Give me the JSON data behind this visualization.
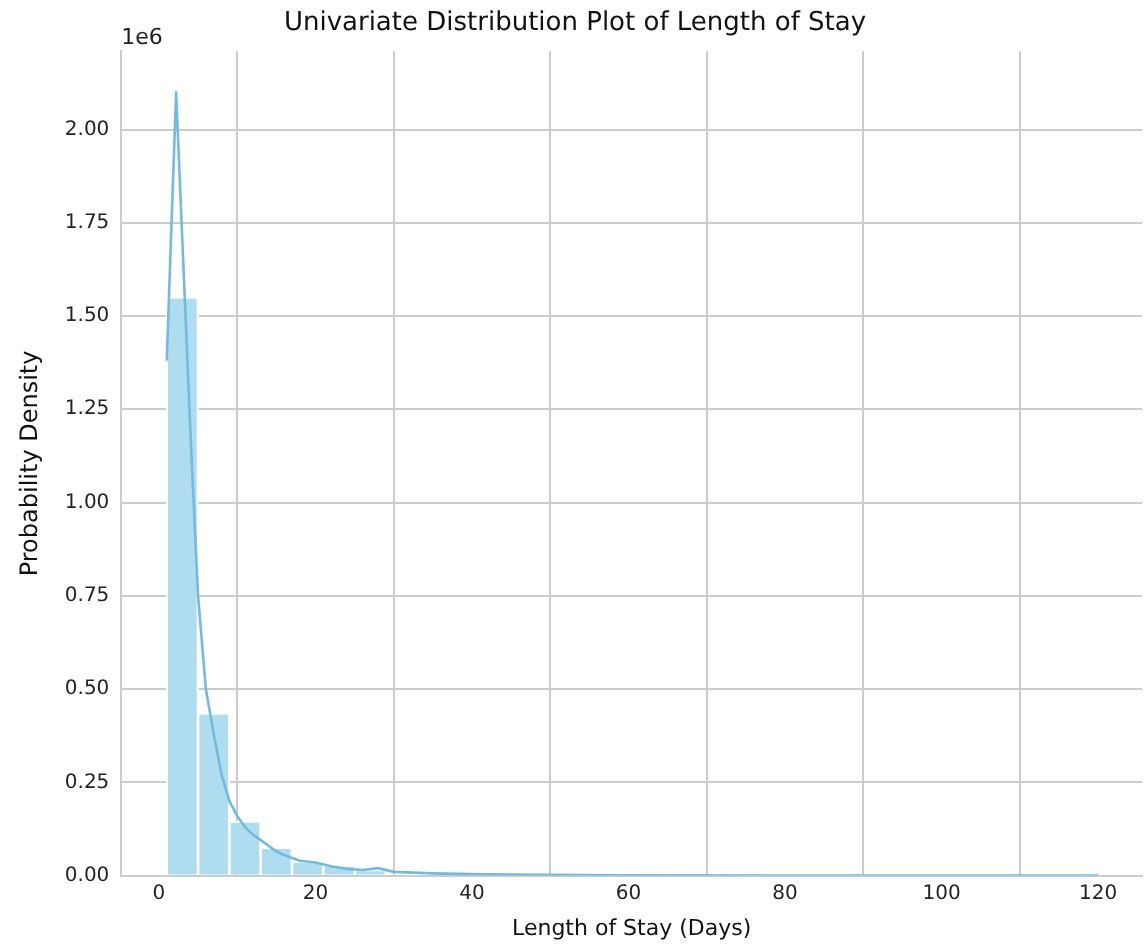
{
  "chart_data": {
    "type": "histogram",
    "title": "Univariate Distribution Plot of Length of Stay",
    "xlabel": "Length of Stay (Days)",
    "ylabel": "Probability Density",
    "annotations": [
      "1e6"
    ],
    "bins": [
      1,
      5,
      9,
      13,
      17,
      21,
      25,
      29,
      33,
      37,
      41,
      45,
      49,
      53,
      57,
      61,
      65,
      69,
      73,
      77,
      81,
      85,
      89,
      93,
      97,
      101,
      105,
      109,
      113,
      117,
      121
    ],
    "values": [
      1.55,
      0.435,
      0.145,
      0.075,
      0.038,
      0.027,
      0.015,
      null,
      null,
      null,
      null,
      null,
      null,
      0,
      0,
      0,
      0,
      0,
      0,
      0,
      0,
      0,
      0,
      0,
      0,
      0,
      0,
      0,
      0,
      0
    ],
    "color": "#b0dcef",
    "series": [
      {
        "type": "line",
        "color": "#74b9de",
        "x": [
          1,
          2.2,
          3,
          4,
          5,
          6,
          7,
          8,
          9,
          10,
          11,
          12,
          13,
          14,
          15,
          16,
          18,
          20,
          22,
          24,
          26,
          28,
          30,
          35,
          40,
          50,
          60,
          80,
          100,
          120
        ],
        "values": [
          1.38,
          2.1,
          1.7,
          1.2,
          0.75,
          0.5,
          0.38,
          0.27,
          0.2,
          0.16,
          0.13,
          0.11,
          0.095,
          0.08,
          0.065,
          0.055,
          0.04,
          0.035,
          0.025,
          0.018,
          0.015,
          0.02,
          0.01,
          0.006,
          0.004,
          0.002,
          0.001,
          0,
          0,
          0
        ]
      }
    ],
    "xlim": [
      -4.8,
      125.6
    ],
    "xticks": [
      0,
      20,
      40,
      60,
      80,
      100,
      120
    ],
    "ylim": [
      0,
      2.21
    ],
    "yticks": [
      {
        "value": 0,
        "label": "0.00"
      },
      {
        "value": 0.25,
        "label": "0.25"
      },
      {
        "value": 0.5,
        "label": "0.50"
      },
      {
        "value": 0.75,
        "label": "0.75"
      },
      {
        "value": 1,
        "label": "1.00"
      },
      {
        "value": 1.25,
        "label": "1.25"
      },
      {
        "value": 1.5,
        "label": "1.50"
      },
      {
        "value": 1.75,
        "label": "1.75"
      },
      {
        "value": 2,
        "label": "2.00"
      }
    ],
    "grid": true,
    "legend": false
  }
}
